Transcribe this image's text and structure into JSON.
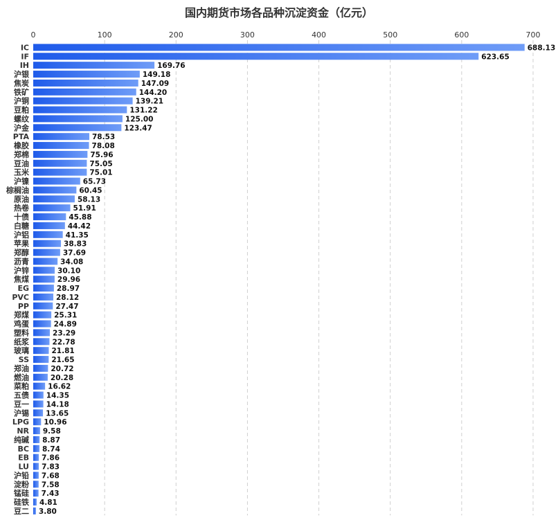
{
  "chart_data": {
    "type": "bar",
    "orientation": "horizontal",
    "title": "国内期货市场各品种沉淀资金（亿元）",
    "xlabel": "",
    "ylabel": "",
    "xlim": [
      0,
      700
    ],
    "ticks": [
      0,
      100,
      200,
      300,
      400,
      500,
      600,
      700
    ],
    "grid": true,
    "axis_position": "top",
    "colors": {
      "bar_start": "#1f5bea",
      "bar_end": "#6f9cf7"
    },
    "categories": [
      "IC",
      "IF",
      "IH",
      "沪银",
      "焦炭",
      "铁矿",
      "沪铜",
      "豆粕",
      "螺纹",
      "沪金",
      "PTA",
      "橡胶",
      "郑棉",
      "豆油",
      "玉米",
      "沪镍",
      "棕榈油",
      "原油",
      "热卷",
      "十债",
      "白糖",
      "沪铝",
      "苹果",
      "郑醇",
      "沥青",
      "沪锌",
      "焦煤",
      "EG",
      "PVC",
      "PP",
      "郑煤",
      "鸡蛋",
      "塑料",
      "纸浆",
      "玻璃",
      "SS",
      "郑油",
      "燃油",
      "菜粕",
      "五债",
      "豆一",
      "沪锡",
      "LPG",
      "NR",
      "纯碱",
      "BC",
      "EB",
      "LU",
      "沪铅",
      "淀粉",
      "锰硅",
      "硅铁",
      "豆二"
    ],
    "values": [
      688.13,
      623.65,
      169.76,
      149.18,
      147.09,
      144.2,
      139.21,
      131.22,
      125.0,
      123.47,
      78.53,
      78.08,
      75.96,
      75.05,
      75.01,
      65.73,
      60.45,
      58.13,
      51.91,
      45.88,
      44.42,
      41.35,
      38.83,
      37.69,
      34.08,
      30.1,
      29.96,
      28.97,
      28.12,
      27.47,
      25.31,
      24.89,
      23.29,
      22.78,
      21.81,
      21.65,
      20.72,
      20.28,
      16.62,
      14.35,
      14.18,
      13.65,
      10.96,
      9.58,
      8.87,
      8.74,
      7.86,
      7.83,
      7.68,
      7.58,
      7.43,
      4.81,
      3.8
    ],
    "value_labels": [
      "688.13",
      "623.65",
      "169.76",
      "149.18",
      "147.09",
      "144.20",
      "139.21",
      "131.22",
      "125.00",
      "123.47",
      "78.53",
      "78.08",
      "75.96",
      "75.05",
      "75.01",
      "65.73",
      "60.45",
      "58.13",
      "51.91",
      "45.88",
      "44.42",
      "41.35",
      "38.83",
      "37.69",
      "34.08",
      "30.10",
      "29.96",
      "28.97",
      "28.12",
      "27.47",
      "25.31",
      "24.89",
      "23.29",
      "22.78",
      "21.81",
      "21.65",
      "20.72",
      "20.28",
      "16.62",
      "14.35",
      "14.18",
      "13.65",
      "10.96",
      "9.58",
      "8.87",
      "8.74",
      "7.86",
      "7.83",
      "7.68",
      "7.58",
      "7.43",
      "4.81",
      "3.80"
    ]
  }
}
